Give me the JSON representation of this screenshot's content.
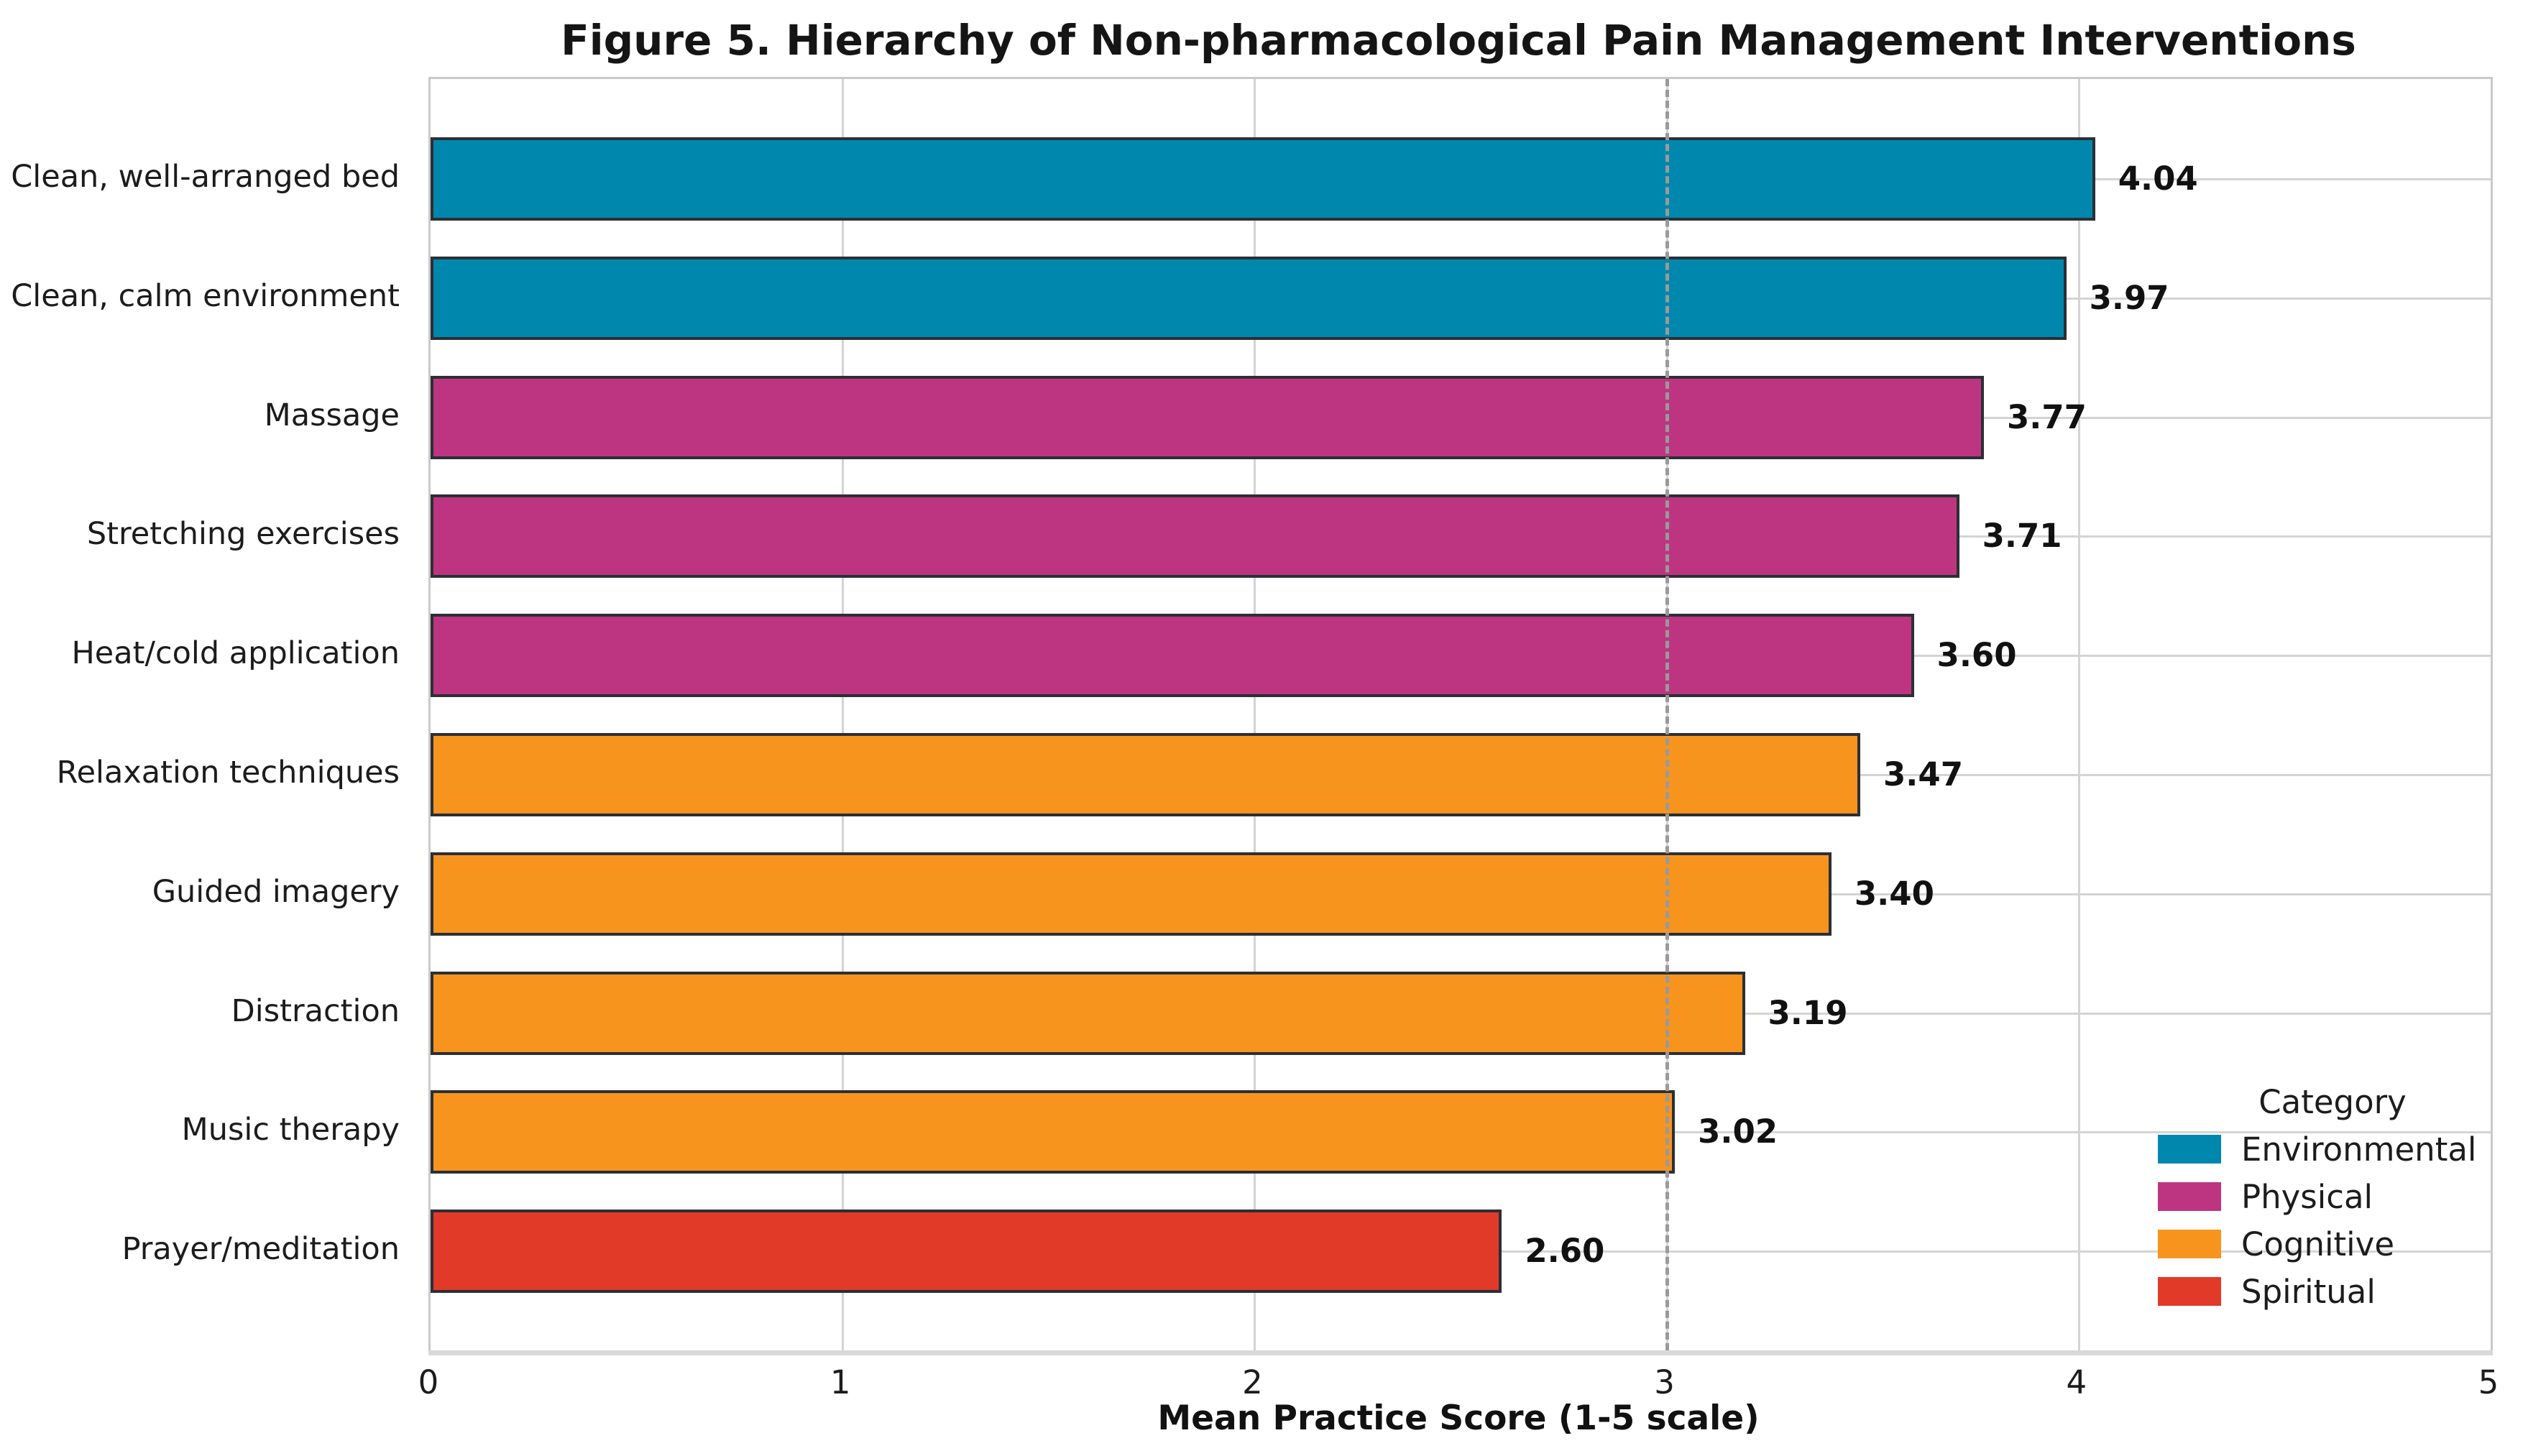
{
  "figure": {
    "title": "Figure 5. Hierarchy of Non-pharmacological Pain Management Interventions"
  },
  "chart_data": {
    "type": "bar",
    "orientation": "horizontal",
    "title": "Figure 5. Hierarchy of Non-pharmacological Pain Management Interventions",
    "categories": [
      "Clean, well-arranged bed",
      "Clean, calm environment",
      "Massage",
      "Stretching exercises",
      "Heat/cold application",
      "Relaxation techniques",
      "Guided imagery",
      "Distraction",
      "Music therapy",
      "Prayer/meditation"
    ],
    "values": [
      4.04,
      3.97,
      3.77,
      3.71,
      3.6,
      3.47,
      3.4,
      3.19,
      3.02,
      2.6
    ],
    "value_labels": [
      "4.04",
      "3.97",
      "3.77",
      "3.71",
      "3.60",
      "3.47",
      "3.40",
      "3.19",
      "3.02",
      "2.60"
    ],
    "bar_groups": [
      "Environmental",
      "Environmental",
      "Physical",
      "Physical",
      "Physical",
      "Cognitive",
      "Cognitive",
      "Cognitive",
      "Cognitive",
      "Spiritual"
    ],
    "group_colors": {
      "Environmental": "#0087ad",
      "Physical": "#bd3580",
      "Cognitive": "#f7941e",
      "Spiritual": "#e23a28"
    },
    "bar_edge_color": "#2b2f36",
    "xlabel": "Mean Practice Score (1-5 scale)",
    "xlim": [
      0,
      5
    ],
    "x_ticks": [
      "0",
      "1",
      "2",
      "3",
      "4",
      "5"
    ],
    "reference_line_x": 3,
    "grid": true,
    "grid_color": "#d4d4d4",
    "reference_line_color": "#9a9a9a",
    "legend": {
      "title": "Category",
      "position": "lower right",
      "entries": [
        {
          "label": "Environmental",
          "color": "#0087ad"
        },
        {
          "label": "Physical",
          "color": "#bd3580"
        },
        {
          "label": "Cognitive",
          "color": "#f7941e"
        },
        {
          "label": "Spiritual",
          "color": "#e23a28"
        }
      ]
    }
  }
}
